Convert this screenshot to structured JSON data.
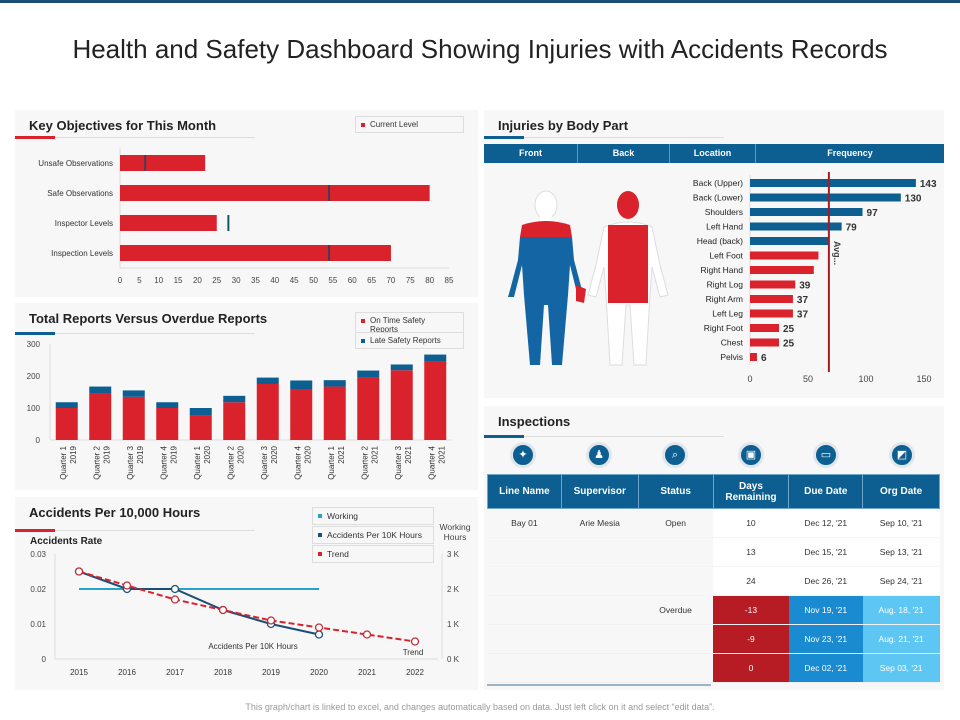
{
  "title": "Health and Safety Dashboard Showing Injuries with Accidents Records",
  "footer": "This graph/chart is linked to excel, and changes automatically based on data. Just left click on it and select “edit data”.",
  "colors": {
    "red": "#d9222c",
    "blue": "#0d5e91",
    "teal": "#27a3c8",
    "dark_red": "#b71c24",
    "light_blue": "#5ec6f2",
    "mid_blue": "#1a8bd1"
  },
  "chart_data": [
    {
      "type": "bar",
      "orientation": "horizontal",
      "title": "Key Objectives for This Month",
      "legend": [
        "Current Level"
      ],
      "categories": [
        "Unsafe Observations",
        "Safe Observations",
        "Inspector Levels",
        "Inspection Levels"
      ],
      "values": [
        22,
        80,
        25,
        70
      ],
      "targets": [
        6.5,
        54,
        28,
        54
      ],
      "xlim": [
        0,
        85
      ],
      "xticks": [
        0,
        5,
        10,
        15,
        20,
        25,
        30,
        35,
        40,
        45,
        50,
        55,
        60,
        65,
        70,
        75,
        80,
        85
      ]
    },
    {
      "type": "bar",
      "stacked": true,
      "title": "Total Reports Versus Overdue Reports",
      "legend_position": "top-right",
      "categories": [
        "Quarter 1 2019",
        "Quarter 2 2019",
        "Quarter 3 2019",
        "Quarter 4 2019",
        "Quarter 1 2020",
        "Quarter 2 2020",
        "Quarter 3 2020",
        "Quarter 4 2020",
        "Quarter 1 2021",
        "Quarter 2 2021",
        "Quarter 3 2021",
        "Quarter 4 2021"
      ],
      "series": [
        {
          "name": "On Time Safety Reports",
          "values": [
            100,
            145,
            135,
            100,
            78,
            118,
            175,
            158,
            167,
            195,
            218,
            245
          ]
        },
        {
          "name": "Late Safety Reports",
          "values": [
            18,
            22,
            20,
            18,
            22,
            20,
            20,
            28,
            20,
            22,
            18,
            22
          ]
        }
      ],
      "ylim": [
        0,
        300
      ],
      "yticks": [
        0,
        100,
        200,
        300
      ]
    },
    {
      "type": "line",
      "title": "Accidents Per 10,000 Hours",
      "ylabel": "Accidents Rate",
      "y2label": "Working Hours",
      "x": [
        2015,
        2016,
        2017,
        2018,
        2019,
        2020,
        2021,
        2022
      ],
      "series": [
        {
          "name": "Working",
          "axis": "right",
          "values": [
            2000,
            2000,
            2000,
            2000,
            2000,
            2000,
            null,
            null
          ]
        },
        {
          "name": "Accidents Per 10K Hours",
          "values": [
            0.025,
            0.02,
            0.02,
            0.014,
            0.01,
            0.007,
            null,
            null
          ],
          "label": "Accidents Per 10K Hours"
        },
        {
          "name": "Trend",
          "dashed": true,
          "values": [
            0.025,
            0.021,
            0.017,
            0.014,
            0.011,
            0.009,
            0.007,
            0.005
          ],
          "label": "Trend"
        }
      ],
      "ylim": [
        0,
        0.03
      ],
      "yticks": [
        "0",
        "0.01",
        "0.02",
        "0.03"
      ],
      "y2lim": [
        0,
        3000
      ],
      "y2ticks": [
        "0 K",
        "1 K",
        "2 K",
        "3 K"
      ]
    },
    {
      "type": "bar",
      "orientation": "horizontal",
      "title": "Injuries by Body Part",
      "categories": [
        "Back (Upper)",
        "Back (Lower)",
        "Shoulders",
        "Left Hand",
        "Head (back)",
        "Left Foot",
        "Right Hand",
        "Right Log",
        "Right Arm",
        "Left Leg",
        "Right Foot",
        "Chest",
        "Pelvis"
      ],
      "values": [
        143,
        130,
        97,
        79,
        68,
        59,
        55,
        39,
        37,
        37,
        25,
        25,
        6
      ],
      "labels": [
        "143",
        "130",
        "97",
        "79",
        "",
        "",
        "",
        "39",
        "37",
        "37",
        "25",
        "25",
        "6"
      ],
      "highlight_top": 5,
      "average": 68,
      "average_label": "Avg...",
      "xlim": [
        0,
        150
      ],
      "xticks": [
        0,
        50,
        100,
        150
      ]
    }
  ],
  "body": {
    "headers": [
      "Front",
      "Back",
      "Location",
      "Frequency"
    ]
  },
  "inspections": {
    "title": "Inspections",
    "icons": [
      "worker-icon",
      "team-icon",
      "search-doc-icon",
      "calendar-icon",
      "due-date-icon",
      "org-date-icon"
    ],
    "columns": [
      "Line Name",
      "Supervisor",
      "Status",
      "Days Remaining",
      "Due Date",
      "Org Date"
    ],
    "line_name": "Bay 01",
    "supervisor": "Arie Mesia",
    "rows": [
      {
        "status": "Open",
        "days": "10",
        "due": "Dec 12, '21",
        "org": "Sep 10, '21"
      },
      {
        "status": "",
        "days": "13",
        "due": "Dec 15, '21",
        "org": "Sep  13, '21"
      },
      {
        "status": "",
        "days": "24",
        "due": "Dec 26, '21",
        "org": "Sep 24, '21"
      },
      {
        "status": "Overdue",
        "days": "-13",
        "due": "Nov 19, '21",
        "org": "Aug. 18, '21"
      },
      {
        "status": "",
        "days": "-9",
        "due": "Nov 23, '21",
        "org": "Aug. 21, '21"
      },
      {
        "status": "",
        "days": "0",
        "due": "Dec 02, '21",
        "org": "Sep 03, '21"
      }
    ]
  }
}
